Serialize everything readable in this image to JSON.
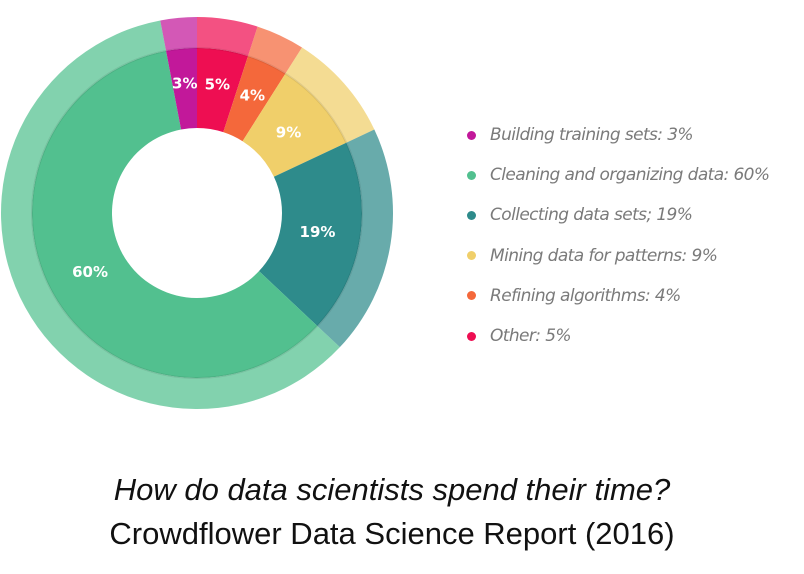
{
  "chart_data": {
    "type": "pie",
    "donut": true,
    "title": "How do data scientists spend their time?",
    "subtitle": "Crowdflower Data Science Report (2016)",
    "start": "top",
    "direction": "clockwise",
    "slices": [
      {
        "label": "Other: 5%",
        "value": 5,
        "data_label": "5%",
        "color": "#ee0e52"
      },
      {
        "label": "Refining algorithms: 4%",
        "value": 4,
        "data_label": "4%",
        "color": "#f4683b"
      },
      {
        "label": "Mining data for patterns: 9%",
        "value": 9,
        "data_label": "9%",
        "color": "#f0cf6a"
      },
      {
        "label": "Collecting data sets; 19%",
        "value": 19,
        "data_label": "19%",
        "color": "#2e8b8b"
      },
      {
        "label": "Cleaning and organizing data: 60%",
        "value": 60,
        "data_label": "60%",
        "color": "#52c08f"
      },
      {
        "label": "Building training sets: 3%",
        "value": 3,
        "data_label": "3%",
        "color": "#c2189a"
      }
    ],
    "legend_order": [
      5,
      4,
      3,
      2,
      1,
      0
    ],
    "legend_placement": "right"
  }
}
